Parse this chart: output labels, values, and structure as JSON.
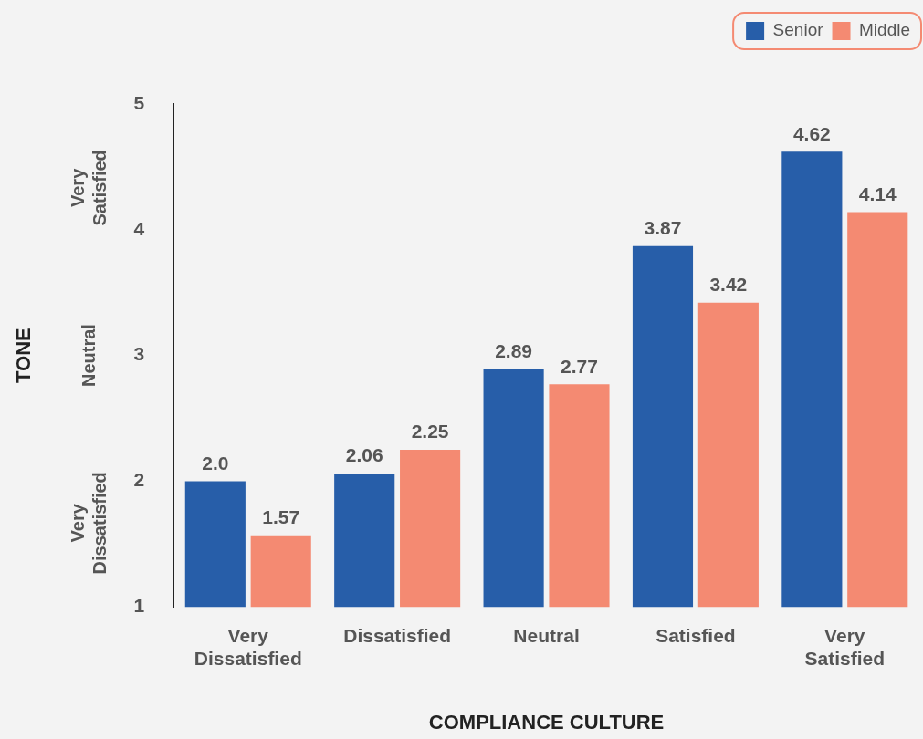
{
  "chart_data": {
    "type": "bar",
    "xlabel": "COMPLIANCE CULTURE",
    "ylabel": "TONE",
    "categories": [
      "Very Dissatisfied",
      "Dissatisfied",
      "Neutral",
      "Satisfied",
      "Very Satisfied"
    ],
    "series": [
      {
        "name": "Senior",
        "color": "#275ea9",
        "values": [
          2.0,
          2.06,
          2.89,
          3.87,
          4.62
        ],
        "value_labels": [
          "2.0",
          "2.06",
          "2.89",
          "3.87",
          "4.62"
        ]
      },
      {
        "name": "Middle",
        "color": "#f48a72",
        "values": [
          1.57,
          2.25,
          2.77,
          3.42,
          4.14
        ],
        "value_labels": [
          "1.57",
          "2.25",
          "2.77",
          "3.42",
          "4.14"
        ]
      }
    ],
    "ylim": [
      1,
      5
    ],
    "yticks": [
      1,
      2,
      3,
      4,
      5
    ],
    "grid": false,
    "legend": "top right",
    "annotations": [
      "Very Dissatisfied",
      "Neutral",
      "Very Satisfied"
    ]
  }
}
